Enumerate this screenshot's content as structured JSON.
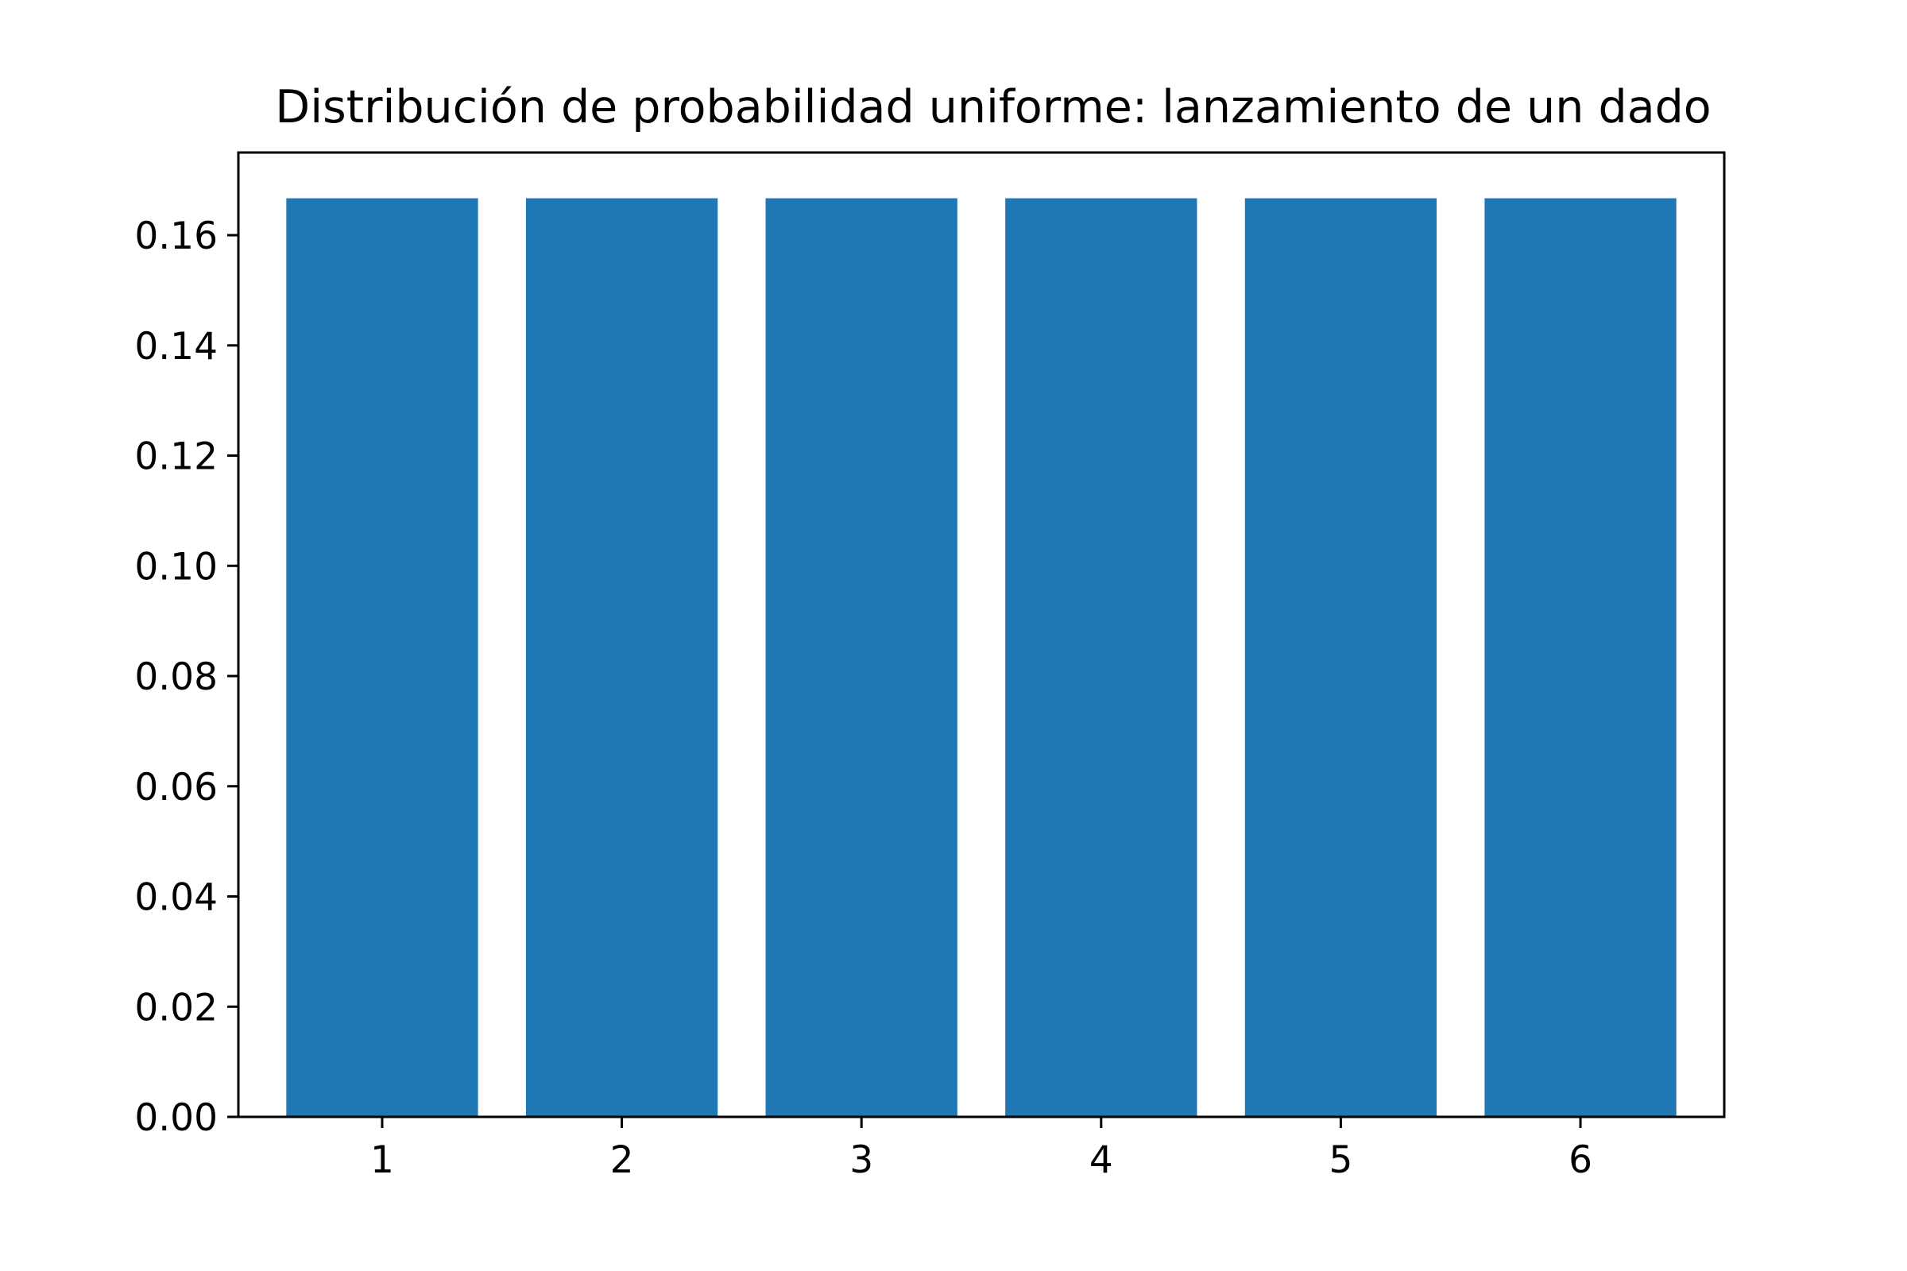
{
  "chart_data": {
    "type": "bar",
    "title": "Distribución de probabilidad uniforme: lanzamiento de un dado",
    "xlabel": "",
    "ylabel": "",
    "categories": [
      "1",
      "2",
      "3",
      "4",
      "5",
      "6"
    ],
    "values": [
      0.1667,
      0.1667,
      0.1667,
      0.1667,
      0.1667,
      0.1667
    ],
    "ylim": [
      0,
      0.175
    ],
    "yticks": [
      "0.00",
      "0.02",
      "0.04",
      "0.06",
      "0.08",
      "0.10",
      "0.12",
      "0.14",
      "0.16"
    ],
    "bar_color": "#1f77b4",
    "grid": false,
    "legend": false
  }
}
